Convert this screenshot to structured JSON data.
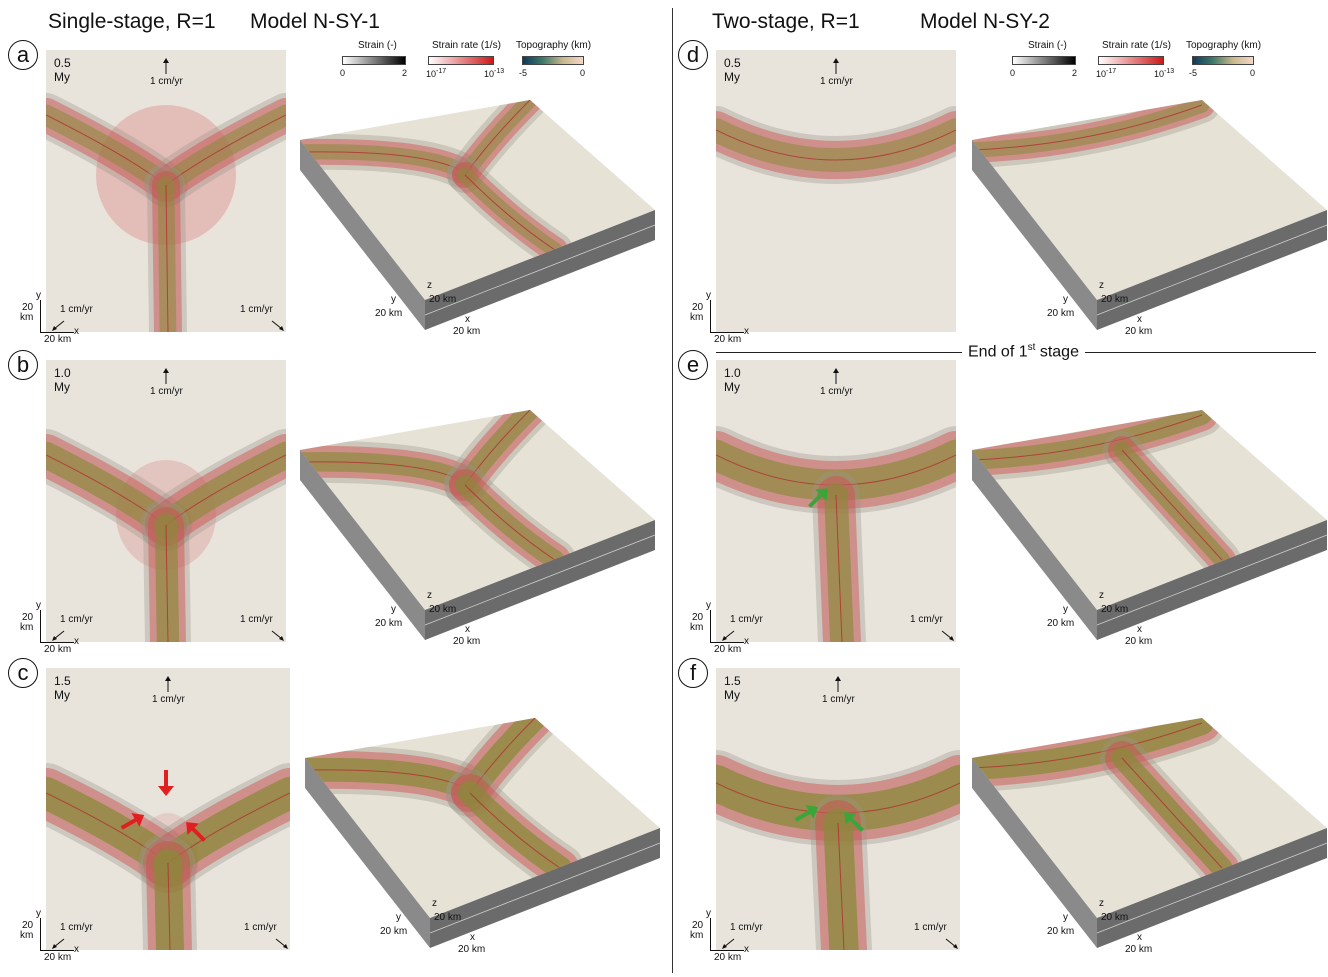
{
  "columns": [
    {
      "title": "Single-stage, R=1",
      "model": "Model N-SY-1"
    },
    {
      "title": "Two-stage, R=1",
      "model": "Model N-SY-2"
    }
  ],
  "colorbars": {
    "strain": {
      "label": "Strain (-)",
      "min": "0",
      "max": "2"
    },
    "strain_rate": {
      "label": "Strain rate (1/s)",
      "min_base": "10",
      "min_exp": "-17",
      "max_base": "10",
      "max_exp": "-13"
    },
    "topography": {
      "label": "Topography (km)",
      "min": "-5",
      "max": "0"
    }
  },
  "panels": [
    {
      "letter": "a",
      "time": "0.5 My"
    },
    {
      "letter": "b",
      "time": "1.0 My"
    },
    {
      "letter": "c",
      "time": "1.5 My"
    },
    {
      "letter": "d",
      "time": "0.5 My"
    },
    {
      "letter": "e",
      "time": "1.0 My"
    },
    {
      "letter": "f",
      "time": "1.5 My"
    }
  ],
  "labels": {
    "velocity": "1 cm/yr",
    "axis_x": "x",
    "axis_y": "y",
    "axis_z": "z",
    "scale_20": "20",
    "scale_km": "km",
    "scale_20km": "20 km"
  },
  "stage_marker": {
    "prefix": "End of 1",
    "sup": "st",
    "suffix": " stage"
  },
  "colors": {
    "background": "#e8e4dc",
    "rift_red": "#d24c4c",
    "rift_olive": "#8a8a3a",
    "block_side": "#6b6b6b",
    "block_top": "#e7e2d6",
    "arrow_red": "#e02020",
    "arrow_green": "#3aa63a"
  }
}
